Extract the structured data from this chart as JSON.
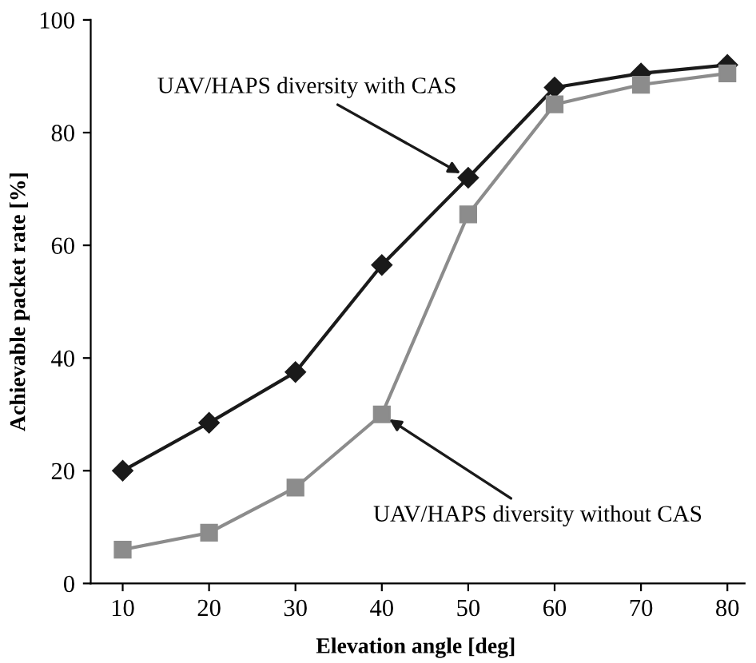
{
  "chart_data": {
    "type": "line",
    "xlabel": "Elevation angle [deg]",
    "ylabel": "Achievable packet rate [%]",
    "categories": [
      "10",
      "20",
      "30",
      "40",
      "50",
      "60",
      "70",
      "80"
    ],
    "series": [
      {
        "color": "#1a1a1a",
        "marker": "diamond",
        "values": [
          20,
          28.5,
          37.5,
          56.5,
          72,
          88,
          90.5,
          92
        ]
      },
      {
        "color": "#8c8c8c",
        "marker": "square",
        "values": [
          6,
          9,
          17,
          30,
          65.5,
          85,
          88.5,
          90.5
        ]
      }
    ],
    "ylim": [
      0,
      100
    ],
    "yticks": [
      0,
      20,
      40,
      60,
      80,
      100
    ],
    "grid": false,
    "line_style": "solid",
    "annotations": [
      {
        "text": "UAV/HAPS diversity with CAS",
        "x": "50",
        "y": 72
      },
      {
        "text": "UAV/HAPS diversity without CAS",
        "x": "40",
        "y": 30
      }
    ]
  }
}
